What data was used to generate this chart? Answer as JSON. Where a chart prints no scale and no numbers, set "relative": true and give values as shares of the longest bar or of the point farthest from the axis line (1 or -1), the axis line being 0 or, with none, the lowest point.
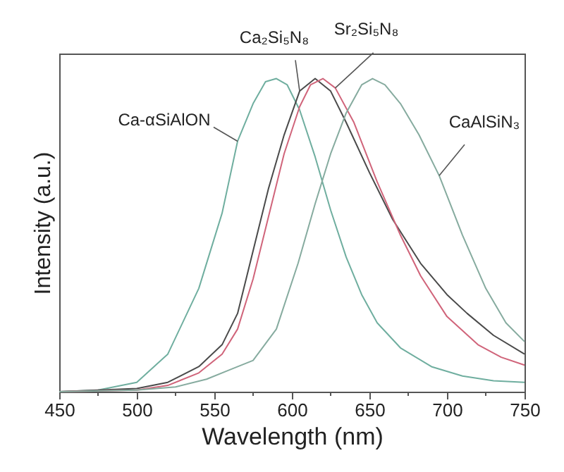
{
  "chart_data": {
    "type": "line",
    "xlabel": "Wavelength (nm)",
    "ylabel": "Intensity (a.u.)",
    "relative": true,
    "xlim": [
      450,
      750
    ],
    "xticks": [
      450,
      {
        "value": 475,
        "label": null
      },
      500,
      {
        "value": 525,
        "label": null
      },
      550,
      {
        "value": 575,
        "label": null
      },
      600,
      {
        "value": 625,
        "label": null
      },
      650,
      {
        "value": 675,
        "label": null
      },
      700,
      {
        "value": 725,
        "label": null
      },
      750
    ],
    "grid": false,
    "legend": false,
    "marker": "none",
    "line_style": "solid",
    "series": [
      {
        "name": "Ca-αSiAlON",
        "color": "#6fae9f",
        "x": [
          450,
          475,
          500,
          520,
          540,
          555,
          565,
          575,
          583,
          590,
          597,
          605,
          615,
          625,
          635,
          645,
          655,
          670,
          690,
          710,
          730,
          750
        ],
        "values": [
          0,
          0.005,
          0.03,
          0.12,
          0.33,
          0.57,
          0.8,
          0.92,
          0.99,
          1.0,
          0.98,
          0.9,
          0.75,
          0.58,
          0.43,
          0.31,
          0.22,
          0.14,
          0.08,
          0.05,
          0.035,
          0.03
        ]
      },
      {
        "name": "Ca₂Si₅N₈",
        "color": "#4a4a4a",
        "x": [
          450,
          500,
          520,
          540,
          555,
          565,
          575,
          585,
          595,
          605,
          615,
          625,
          635,
          650,
          665,
          683,
          700,
          713,
          730,
          750
        ],
        "values": [
          0,
          0.01,
          0.03,
          0.08,
          0.15,
          0.25,
          0.45,
          0.65,
          0.82,
          0.96,
          1.0,
          0.96,
          0.86,
          0.7,
          0.55,
          0.41,
          0.31,
          0.25,
          0.18,
          0.12
        ]
      },
      {
        "name": "Sr₂Si₅N₈",
        "color": "#d0647a",
        "x": [
          450,
          500,
          520,
          540,
          555,
          565,
          575,
          585,
          595,
          605,
          612,
          620,
          628,
          640,
          655,
          670,
          683,
          700,
          720,
          735,
          750
        ],
        "values": [
          0,
          0.005,
          0.02,
          0.06,
          0.12,
          0.2,
          0.36,
          0.56,
          0.76,
          0.91,
          0.98,
          1.0,
          0.97,
          0.86,
          0.67,
          0.5,
          0.37,
          0.24,
          0.15,
          0.11,
          0.085
        ]
      },
      {
        "name": "CaAlSiN₃",
        "color": "#86ab9f",
        "x": [
          450,
          500,
          525,
          545,
          560,
          575,
          590,
          604,
          615,
          625,
          635,
          645,
          652,
          660,
          670,
          682,
          695,
          710,
          725,
          738,
          750
        ],
        "values": [
          0,
          0.005,
          0.015,
          0.04,
          0.07,
          0.1,
          0.2,
          0.41,
          0.6,
          0.76,
          0.89,
          0.98,
          1.0,
          0.98,
          0.92,
          0.82,
          0.69,
          0.5,
          0.33,
          0.22,
          0.16
        ]
      }
    ]
  }
}
